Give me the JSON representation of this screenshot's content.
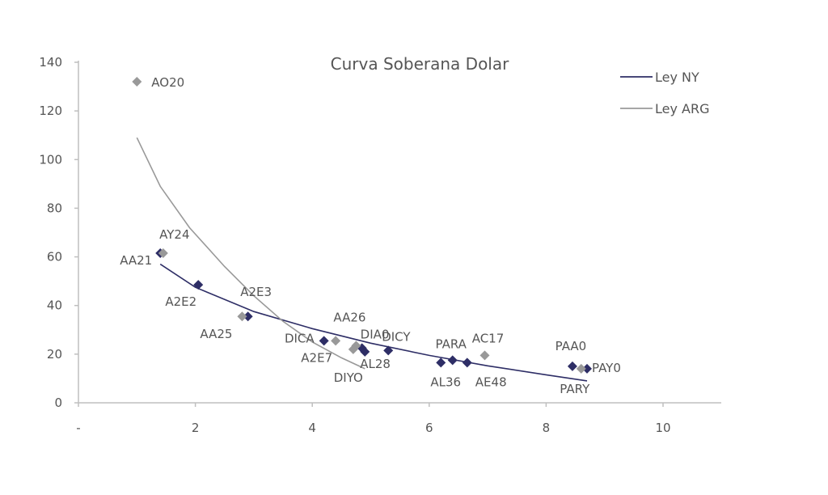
{
  "chart_data": {
    "type": "scatter",
    "title": "Curva Soberana Dolar",
    "xlabel": "",
    "ylabel": "",
    "xlim": [
      0,
      11
    ],
    "ylim": [
      0,
      140
    ],
    "x_ticks": [
      {
        "value": 0,
        "label": "-"
      },
      {
        "value": 2,
        "label": "2"
      },
      {
        "value": 4,
        "label": "4"
      },
      {
        "value": 6,
        "label": "6"
      },
      {
        "value": 8,
        "label": "8"
      },
      {
        "value": 10,
        "label": "10"
      }
    ],
    "y_ticks": [
      {
        "value": 0,
        "label": "0"
      },
      {
        "value": 20,
        "label": "20"
      },
      {
        "value": 40,
        "label": "40"
      },
      {
        "value": 60,
        "label": "60"
      },
      {
        "value": 80,
        "label": "80"
      },
      {
        "value": 100,
        "label": "100"
      },
      {
        "value": 120,
        "label": "120"
      },
      {
        "value": 140,
        "label": "140"
      }
    ],
    "grid": false,
    "legend_position": "top-right",
    "series": [
      {
        "name": "Ley NY",
        "color": "#2e2e66",
        "marker": "diamond",
        "points": [
          {
            "label": "AA21",
            "x": 1.4,
            "y": 61.5
          },
          {
            "label": "A2E2",
            "x": 2.05,
            "y": 48.5
          },
          {
            "label": "A2E3",
            "x": 2.9,
            "y": 35.5
          },
          {
            "label": "DICA",
            "x": 4.2,
            "y": 25.5
          },
          {
            "label": "DIA0",
            "x": 4.85,
            "y": 22.5
          },
          {
            "label": "AL28",
            "x": 4.9,
            "y": 21
          },
          {
            "label": "DICY",
            "x": 5.3,
            "y": 21.5
          },
          {
            "label": "AL36",
            "x": 6.2,
            "y": 16.5
          },
          {
            "label": "PARA",
            "x": 6.4,
            "y": 17.5
          },
          {
            "label": "AE48",
            "x": 6.65,
            "y": 16.5
          },
          {
            "label": "PAA0",
            "x": 8.45,
            "y": 15
          },
          {
            "label": "PAY0",
            "x": 8.7,
            "y": 14
          }
        ],
        "trend": [
          {
            "x": 1.4,
            "y": 57
          },
          {
            "x": 2,
            "y": 47.5
          },
          {
            "x": 3,
            "y": 37.5
          },
          {
            "x": 4,
            "y": 30.5
          },
          {
            "x": 5,
            "y": 24.5
          },
          {
            "x": 6,
            "y": 19.5
          },
          {
            "x": 7,
            "y": 15.2
          },
          {
            "x": 8,
            "y": 11.5
          },
          {
            "x": 8.7,
            "y": 9
          }
        ]
      },
      {
        "name": "Ley ARG",
        "color": "#999999",
        "marker": "diamond",
        "points": [
          {
            "label": "AO20",
            "x": 1.0,
            "y": 132
          },
          {
            "label": "AY24",
            "x": 1.45,
            "y": 61.5
          },
          {
            "label": "AA25",
            "x": 2.8,
            "y": 35.5
          },
          {
            "label": "A2E7",
            "x": 4.4,
            "y": 25.5
          },
          {
            "label": "AA26",
            "x": 4.75,
            "y": 23.5
          },
          {
            "label": "DIYO",
            "x": 4.7,
            "y": 22
          },
          {
            "label": "AC17",
            "x": 6.95,
            "y": 19.5
          },
          {
            "label": "PARY",
            "x": 8.6,
            "y": 14
          }
        ],
        "trend": [
          {
            "x": 1.0,
            "y": 109
          },
          {
            "x": 1.4,
            "y": 89
          },
          {
            "x": 1.9,
            "y": 72
          },
          {
            "x": 2.5,
            "y": 56
          },
          {
            "x": 3.0,
            "y": 44
          },
          {
            "x": 3.5,
            "y": 33.5
          },
          {
            "x": 4.0,
            "y": 25
          },
          {
            "x": 4.5,
            "y": 18.5
          },
          {
            "x": 4.9,
            "y": 14
          }
        ]
      }
    ]
  }
}
